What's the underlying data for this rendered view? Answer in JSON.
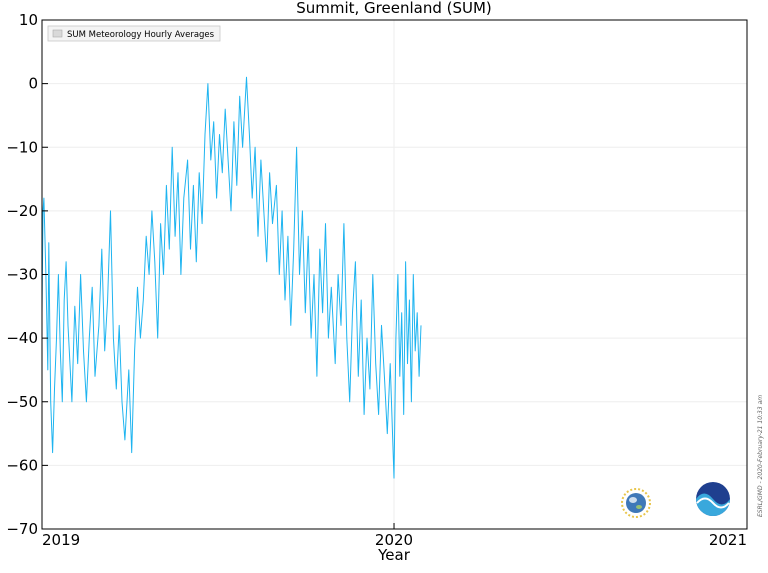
{
  "chart_data": {
    "type": "line",
    "title": "Summit, Greenland (SUM)",
    "xlabel": "Year",
    "ylabel": "",
    "ylim": [
      -70,
      10
    ],
    "xlim": [
      "2019-01-01",
      "2021-01-01"
    ],
    "x_ticks": [
      "2019",
      "2020",
      "2021"
    ],
    "y_ticks": [
      10,
      0,
      -10,
      -20,
      -30,
      -40,
      -50,
      -60,
      -70
    ],
    "grid": true,
    "legend_position": "top-left",
    "series": [
      {
        "name": "SUM  Meteorology Hourly Averages",
        "color": "#1eb4f0",
        "points": [
          [
            "2019-01-01",
            -36
          ],
          [
            "2019-01-02",
            -20
          ],
          [
            "2019-01-03",
            -18
          ],
          [
            "2019-01-05",
            -30
          ],
          [
            "2019-01-07",
            -45
          ],
          [
            "2019-01-08",
            -25
          ],
          [
            "2019-01-10",
            -50
          ],
          [
            "2019-01-12",
            -58
          ],
          [
            "2019-01-14",
            -48
          ],
          [
            "2019-01-16",
            -40
          ],
          [
            "2019-01-18",
            -30
          ],
          [
            "2019-01-20",
            -42
          ],
          [
            "2019-01-22",
            -50
          ],
          [
            "2019-01-24",
            -34
          ],
          [
            "2019-01-26",
            -28
          ],
          [
            "2019-01-28",
            -38
          ],
          [
            "2019-02-01",
            -50
          ],
          [
            "2019-02-04",
            -35
          ],
          [
            "2019-02-07",
            -44
          ],
          [
            "2019-02-10",
            -30
          ],
          [
            "2019-02-13",
            -42
          ],
          [
            "2019-02-16",
            -50
          ],
          [
            "2019-02-19",
            -40
          ],
          [
            "2019-02-22",
            -32
          ],
          [
            "2019-02-25",
            -46
          ],
          [
            "2019-03-01",
            -38
          ],
          [
            "2019-03-04",
            -26
          ],
          [
            "2019-03-07",
            -42
          ],
          [
            "2019-03-10",
            -34
          ],
          [
            "2019-03-13",
            -20
          ],
          [
            "2019-03-16",
            -40
          ],
          [
            "2019-03-19",
            -48
          ],
          [
            "2019-03-22",
            -38
          ],
          [
            "2019-03-25",
            -50
          ],
          [
            "2019-03-28",
            -56
          ],
          [
            "2019-04-01",
            -45
          ],
          [
            "2019-04-04",
            -58
          ],
          [
            "2019-04-07",
            -42
          ],
          [
            "2019-04-10",
            -32
          ],
          [
            "2019-04-13",
            -40
          ],
          [
            "2019-04-16",
            -34
          ],
          [
            "2019-04-19",
            -24
          ],
          [
            "2019-04-22",
            -30
          ],
          [
            "2019-04-25",
            -20
          ],
          [
            "2019-04-28",
            -28
          ],
          [
            "2019-05-01",
            -40
          ],
          [
            "2019-05-04",
            -22
          ],
          [
            "2019-05-07",
            -30
          ],
          [
            "2019-05-10",
            -16
          ],
          [
            "2019-05-13",
            -26
          ],
          [
            "2019-05-16",
            -10
          ],
          [
            "2019-05-19",
            -24
          ],
          [
            "2019-05-22",
            -14
          ],
          [
            "2019-05-25",
            -30
          ],
          [
            "2019-05-28",
            -18
          ],
          [
            "2019-06-01",
            -12
          ],
          [
            "2019-06-04",
            -26
          ],
          [
            "2019-06-07",
            -16
          ],
          [
            "2019-06-10",
            -28
          ],
          [
            "2019-06-13",
            -14
          ],
          [
            "2019-06-16",
            -22
          ],
          [
            "2019-06-19",
            -8
          ],
          [
            "2019-06-22",
            0
          ],
          [
            "2019-06-25",
            -12
          ],
          [
            "2019-06-28",
            -6
          ],
          [
            "2019-07-01",
            -18
          ],
          [
            "2019-07-04",
            -8
          ],
          [
            "2019-07-07",
            -14
          ],
          [
            "2019-07-10",
            -4
          ],
          [
            "2019-07-13",
            -12
          ],
          [
            "2019-07-16",
            -20
          ],
          [
            "2019-07-19",
            -6
          ],
          [
            "2019-07-22",
            -16
          ],
          [
            "2019-07-25",
            -2
          ],
          [
            "2019-07-28",
            -10
          ],
          [
            "2019-08-01",
            1
          ],
          [
            "2019-08-04",
            -8
          ],
          [
            "2019-08-07",
            -18
          ],
          [
            "2019-08-10",
            -10
          ],
          [
            "2019-08-13",
            -24
          ],
          [
            "2019-08-16",
            -12
          ],
          [
            "2019-08-19",
            -20
          ],
          [
            "2019-08-22",
            -28
          ],
          [
            "2019-08-25",
            -14
          ],
          [
            "2019-08-28",
            -22
          ],
          [
            "2019-09-01",
            -16
          ],
          [
            "2019-09-04",
            -30
          ],
          [
            "2019-09-07",
            -20
          ],
          [
            "2019-09-10",
            -34
          ],
          [
            "2019-09-13",
            -24
          ],
          [
            "2019-09-16",
            -38
          ],
          [
            "2019-09-19",
            -26
          ],
          [
            "2019-09-22",
            -10
          ],
          [
            "2019-09-25",
            -30
          ],
          [
            "2019-09-28",
            -20
          ],
          [
            "2019-10-01",
            -36
          ],
          [
            "2019-10-04",
            -24
          ],
          [
            "2019-10-07",
            -40
          ],
          [
            "2019-10-10",
            -30
          ],
          [
            "2019-10-13",
            -46
          ],
          [
            "2019-10-16",
            -26
          ],
          [
            "2019-10-19",
            -36
          ],
          [
            "2019-10-22",
            -22
          ],
          [
            "2019-10-25",
            -40
          ],
          [
            "2019-10-28",
            -32
          ],
          [
            "2019-11-01",
            -44
          ],
          [
            "2019-11-04",
            -30
          ],
          [
            "2019-11-07",
            -38
          ],
          [
            "2019-11-10",
            -22
          ],
          [
            "2019-11-13",
            -40
          ],
          [
            "2019-11-16",
            -50
          ],
          [
            "2019-11-19",
            -36
          ],
          [
            "2019-11-22",
            -28
          ],
          [
            "2019-11-25",
            -46
          ],
          [
            "2019-11-28",
            -34
          ],
          [
            "2019-12-01",
            -52
          ],
          [
            "2019-12-04",
            -40
          ],
          [
            "2019-12-07",
            -48
          ],
          [
            "2019-12-10",
            -30
          ],
          [
            "2019-12-13",
            -44
          ],
          [
            "2019-12-16",
            -52
          ],
          [
            "2019-12-19",
            -38
          ],
          [
            "2019-12-22",
            -46
          ],
          [
            "2019-12-25",
            -55
          ],
          [
            "2019-12-28",
            -44
          ],
          [
            "2020-01-01",
            -62
          ],
          [
            "2020-01-03",
            -40
          ],
          [
            "2020-01-05",
            -30
          ],
          [
            "2020-01-07",
            -46
          ],
          [
            "2020-01-09",
            -36
          ],
          [
            "2020-01-11",
            -52
          ],
          [
            "2020-01-13",
            -28
          ],
          [
            "2020-01-15",
            -44
          ],
          [
            "2020-01-17",
            -34
          ],
          [
            "2020-01-19",
            -50
          ],
          [
            "2020-01-21",
            -30
          ],
          [
            "2020-01-23",
            -42
          ],
          [
            "2020-01-25",
            -36
          ],
          [
            "2020-01-27",
            -46
          ],
          [
            "2020-01-29",
            -38
          ]
        ]
      }
    ],
    "annotations": [
      "ESRL/GMD - 2020-February-21 10:33 am"
    ]
  }
}
